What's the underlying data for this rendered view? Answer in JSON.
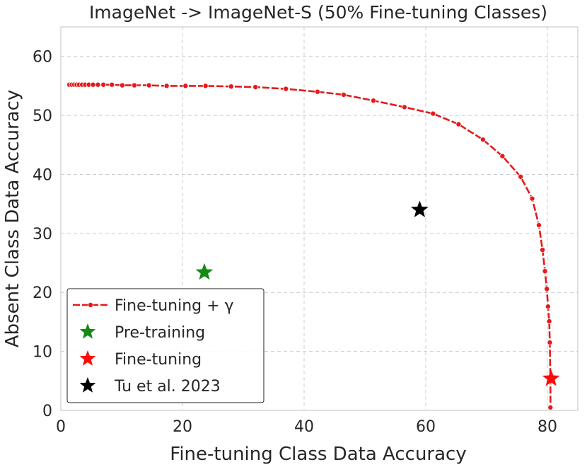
{
  "chart_data": {
    "type": "scatter",
    "title": "ImageNet -> ImageNet-S (50% Fine-tuning Classes)",
    "xlabel": "Fine-tuning Class Data Accuracy",
    "ylabel": "Absent Class Data Accuracy",
    "xlim": [
      0,
      85
    ],
    "ylim": [
      0,
      65
    ],
    "xticks": [
      "0",
      "20",
      "40",
      "60",
      "80"
    ],
    "yticks": [
      "0",
      "10",
      "20",
      "30",
      "40",
      "50",
      "60"
    ],
    "grid": true,
    "legend_position": "bottom-left",
    "series": [
      {
        "name": "Fine-tuning + γ",
        "kind": "line",
        "color": "#e41a1c",
        "marker": "circle",
        "x": [
          1.4,
          1.8,
          2.2,
          2.6,
          3.0,
          3.5,
          4.0,
          4.6,
          5.3,
          6.1,
          7.0,
          8.4,
          10.1,
          12.1,
          14.5,
          17.4,
          20.5,
          23.8,
          28.0,
          32.0,
          37.0,
          42.2,
          46.5,
          51.4,
          56.5,
          61.2,
          65.4,
          69.4,
          72.6,
          75.6,
          77.5,
          78.6,
          79.2,
          79.6,
          79.9,
          80.1,
          80.3,
          80.4,
          80.5,
          80.5
        ],
        "y": [
          55.2,
          55.2,
          55.2,
          55.2,
          55.2,
          55.2,
          55.2,
          55.2,
          55.2,
          55.2,
          55.2,
          55.2,
          55.1,
          55.1,
          55.1,
          55.0,
          55.0,
          55.0,
          54.9,
          54.8,
          54.5,
          54.0,
          53.5,
          52.5,
          51.4,
          50.3,
          48.5,
          45.9,
          43.1,
          39.6,
          35.9,
          31.4,
          27.2,
          23.6,
          20.6,
          17.6,
          15.1,
          11.5,
          5.0,
          0.5
        ]
      },
      {
        "name": "Pre-training",
        "kind": "point",
        "color": "#138a13",
        "marker": "star",
        "x": [
          23.6
        ],
        "y": [
          23.4
        ]
      },
      {
        "name": "Fine-tuning",
        "kind": "point",
        "color": "#ff0a0a",
        "marker": "star",
        "x": [
          80.6
        ],
        "y": [
          5.4
        ]
      },
      {
        "name": "Tu et al. 2023",
        "kind": "point",
        "color": "#000000",
        "marker": "star",
        "x": [
          59.0
        ],
        "y": [
          34.0
        ]
      }
    ]
  }
}
